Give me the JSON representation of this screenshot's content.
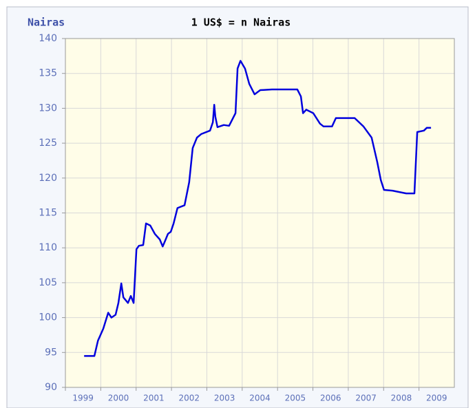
{
  "chart_data": {
    "type": "line",
    "title": "1 US$ = n Nairas",
    "y_label": "Nairas",
    "x": [
      1999.53,
      1999.82,
      1999.92,
      2000.07,
      2000.21,
      2000.3,
      2000.42,
      2000.5,
      2000.58,
      2000.64,
      2000.77,
      2000.85,
      2000.93,
      2001.01,
      2001.08,
      2001.2,
      2001.28,
      2001.4,
      2001.53,
      2001.67,
      2001.75,
      2001.82,
      2001.9,
      2001.98,
      2002.06,
      2002.17,
      2002.37,
      2002.5,
      2002.6,
      2002.72,
      2002.84,
      2003.09,
      2003.17,
      2003.21,
      2003.24,
      2003.3,
      2003.48,
      2003.63,
      2003.81,
      2003.87,
      2003.95,
      2004.08,
      2004.2,
      2004.35,
      2004.51,
      2004.84,
      2005.33,
      2005.56,
      2005.66,
      2005.72,
      2005.81,
      2006.01,
      2006.2,
      2006.3,
      2006.54,
      2006.65,
      2007.18,
      2007.43,
      2007.66,
      2007.82,
      2007.92,
      2008.01,
      2008.25,
      2008.64,
      2008.87,
      2008.95,
      2009.14,
      2009.22,
      2009.34
    ],
    "series": [
      {
        "name": "Nairas",
        "color": "#0000dd",
        "values": [
          94.5,
          94.5,
          96.7,
          98.4,
          100.7,
          100.0,
          100.4,
          102.1,
          104.9,
          102.9,
          102.1,
          103.1,
          102.1,
          109.8,
          110.3,
          110.4,
          113.5,
          113.2,
          112.0,
          111.2,
          110.2,
          111.0,
          112.0,
          112.3,
          113.5,
          115.7,
          116.1,
          119.4,
          124.3,
          125.8,
          126.3,
          126.8,
          128.0,
          130.5,
          128.8,
          127.3,
          127.6,
          127.5,
          129.3,
          135.7,
          136.8,
          135.7,
          133.5,
          132.0,
          132.6,
          132.7,
          132.7,
          132.7,
          131.7,
          129.3,
          129.8,
          129.3,
          127.8,
          127.4,
          127.4,
          128.6,
          128.6,
          127.4,
          125.8,
          122.3,
          119.7,
          118.3,
          118.2,
          117.8,
          117.8,
          126.6,
          126.8,
          127.2,
          127.2
        ]
      }
    ],
    "xlim": [
      1999,
      2010
    ],
    "xticks": [
      1999,
      2000,
      2001,
      2002,
      2003,
      2004,
      2005,
      2006,
      2007,
      2008,
      2009
    ],
    "ylim": [
      90,
      140
    ],
    "yticks": [
      90,
      95,
      100,
      105,
      110,
      115,
      120,
      125,
      130,
      135,
      140
    ],
    "grid": true
  }
}
